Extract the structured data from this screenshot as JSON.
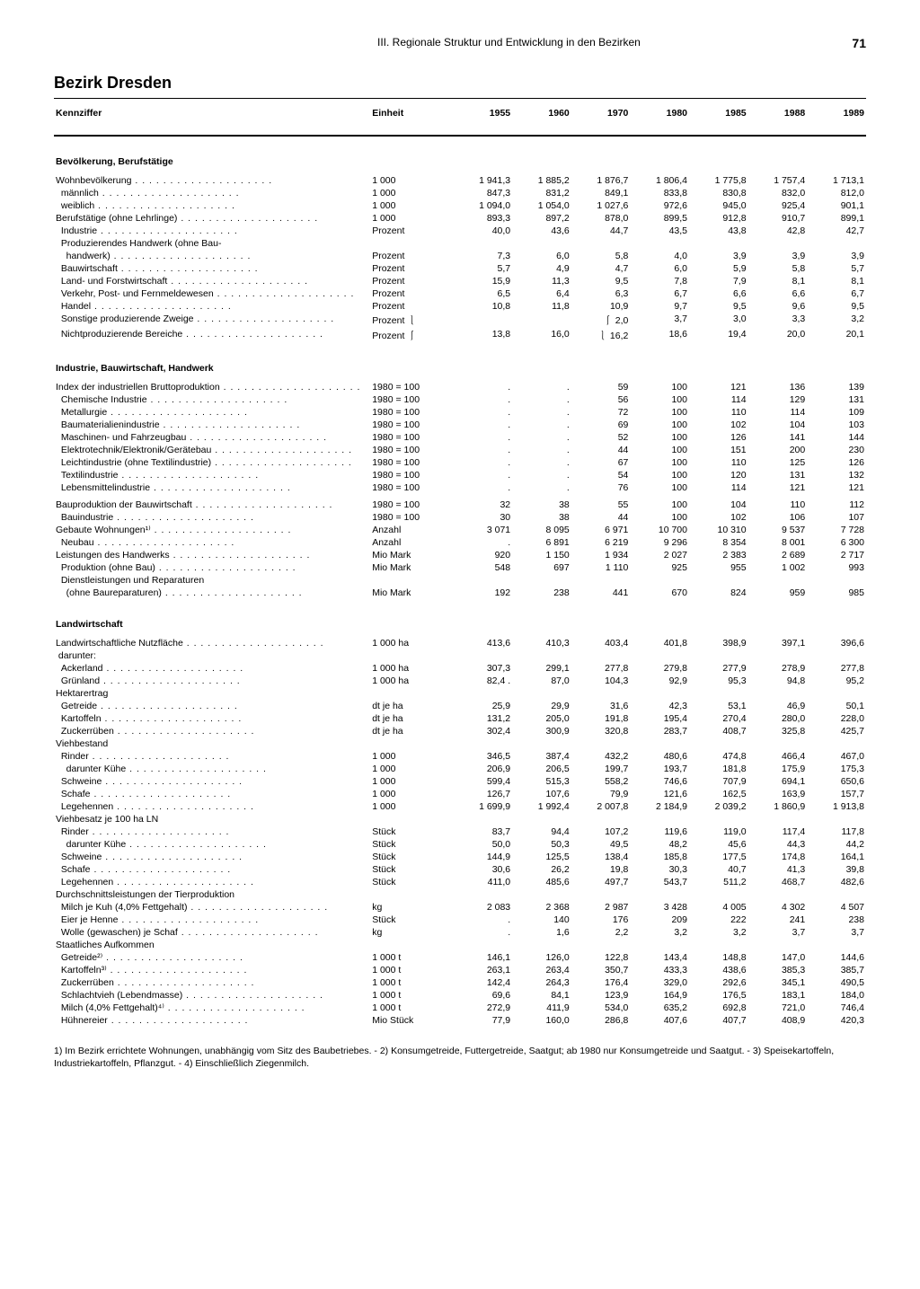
{
  "page": {
    "chapter": "III. Regionale Struktur und Entwicklung in den Bezirken",
    "number": "71",
    "title": "Bezirk Dresden"
  },
  "columns": [
    "Kennziffer",
    "Einheit",
    "1955",
    "1960",
    "1970",
    "1980",
    "1985",
    "1988",
    "1989"
  ],
  "sections": [
    {
      "title": "Bevölkerung, Berufstätige",
      "rows": [
        {
          "label": "Wohnbevölkerung",
          "unit": "1 000",
          "v": [
            "1 941,3",
            "1 885,2",
            "1 876,7",
            "1 806,4",
            "1 775,8",
            "1 757,4",
            "1 713,1"
          ],
          "dots": 1
        },
        {
          "label": "  männlich",
          "unit": "1 000",
          "v": [
            "847,3",
            "831,2",
            "849,1",
            "833,8",
            "830,8",
            "832,0",
            "812,0"
          ],
          "dots": 1
        },
        {
          "label": "  weiblich",
          "unit": "1 000",
          "v": [
            "1 094,0",
            "1 054,0",
            "1 027,6",
            "972,6",
            "945,0",
            "925,4",
            "901,1"
          ],
          "dots": 1
        },
        {
          "label": "Berufstätige (ohne Lehrlinge)",
          "unit": "1 000",
          "v": [
            "893,3",
            "897,2",
            "878,0",
            "899,5",
            "912,8",
            "910,7",
            "899,1"
          ],
          "dots": 1
        },
        {
          "label": "  Industrie",
          "unit": "Prozent",
          "v": [
            "40,0",
            "43,6",
            "44,7",
            "43,5",
            "43,8",
            "42,8",
            "42,7"
          ],
          "dots": 1
        },
        {
          "label": "  Produzierendes Handwerk (ohne Bau-",
          "unit": "",
          "v": [
            "",
            "",
            "",
            "",
            "",
            "",
            ""
          ]
        },
        {
          "label": "    handwerk)",
          "unit": "Prozent",
          "v": [
            "7,3",
            "6,0",
            "5,8",
            "4,0",
            "3,9",
            "3,9",
            "3,9"
          ],
          "dots": 1
        },
        {
          "label": "  Bauwirtschaft",
          "unit": "Prozent",
          "v": [
            "5,7",
            "4,9",
            "4,7",
            "6,0",
            "5,9",
            "5,8",
            "5,7"
          ],
          "dots": 1
        },
        {
          "label": "  Land- und Forstwirtschaft",
          "unit": "Prozent",
          "v": [
            "15,9",
            "11,3",
            "9,5",
            "7,8",
            "7,9",
            "8,1",
            "8,1"
          ],
          "dots": 1
        },
        {
          "label": "  Verkehr, Post- und Fernmeldewesen",
          "unit": "Prozent",
          "v": [
            "6,5",
            "6,4",
            "6,3",
            "6,7",
            "6,6",
            "6,6",
            "6,7"
          ],
          "dots": 1
        },
        {
          "label": "  Handel",
          "unit": "Prozent",
          "v": [
            "10,8",
            "11,8",
            "10,9",
            "9,7",
            "9,5",
            "9,6",
            "9,5"
          ],
          "dots": 1
        },
        {
          "label": "  Sonstige produzierende Zweige",
          "unit": "Prozent  ⎱",
          "v": [
            "",
            "",
            "⎰  2,0",
            "3,7",
            "3,0",
            "3,3",
            "3,2"
          ],
          "dots": 1
        },
        {
          "label": "  Nichtproduzierende Bereiche",
          "unit": "Prozent  ⎰",
          "v": [
            "13,8",
            "16,0",
            "⎱ 16,2",
            "18,6",
            "19,4",
            "20,0",
            "20,1"
          ],
          "dots": 1
        }
      ]
    },
    {
      "title": "Industrie, Bauwirtschaft, Handwerk",
      "rows": [
        {
          "label": "Index der industriellen Bruttoproduktion",
          "unit": "1980 = 100",
          "v": [
            ".",
            ".",
            "59",
            "100",
            "121",
            "136",
            "139"
          ],
          "dots": 1
        },
        {
          "label": "  Chemische Industrie",
          "unit": "1980 = 100",
          "v": [
            ".",
            ".",
            "56",
            "100",
            "114",
            "129",
            "131"
          ],
          "dots": 1
        },
        {
          "label": "  Metallurgie",
          "unit": "1980 = 100",
          "v": [
            ".",
            ".",
            "72",
            "100",
            "110",
            "114",
            "109"
          ],
          "dots": 1
        },
        {
          "label": "  Baumaterialienindustrie",
          "unit": "1980 = 100",
          "v": [
            ".",
            ".",
            "69",
            "100",
            "102",
            "104",
            "103"
          ],
          "dots": 1
        },
        {
          "label": "  Maschinen- und Fahrzeugbau",
          "unit": "1980 = 100",
          "v": [
            ".",
            ".",
            "52",
            "100",
            "126",
            "141",
            "144"
          ],
          "dots": 1
        },
        {
          "label": "  Elektrotechnik/Elektronik/Gerätebau",
          "unit": "1980 = 100",
          "v": [
            ".",
            ".",
            "44",
            "100",
            "151",
            "200",
            "230"
          ],
          "dots": 1
        },
        {
          "label": "  Leichtindustrie (ohne Textilindustrie)",
          "unit": "1980 = 100",
          "v": [
            ".",
            ".",
            "67",
            "100",
            "110",
            "125",
            "126"
          ],
          "dots": 1
        },
        {
          "label": "  Textilindustrie",
          "unit": "1980 = 100",
          "v": [
            ".",
            ".",
            "54",
            "100",
            "120",
            "131",
            "132"
          ],
          "dots": 1
        },
        {
          "label": "  Lebensmittelindustrie",
          "unit": "1980 = 100",
          "v": [
            ".",
            ".",
            "76",
            "100",
            "114",
            "121",
            "121"
          ],
          "dots": 1
        },
        {
          "label": "Bauproduktion der Bauwirtschaft",
          "unit": "1980 = 100",
          "v": [
            "32",
            "38",
            "55",
            "100",
            "104",
            "110",
            "112"
          ],
          "dots": 1,
          "pad": 1
        },
        {
          "label": "  Bauindustrie",
          "unit": "1980 = 100",
          "v": [
            "30",
            "38",
            "44",
            "100",
            "102",
            "106",
            "107"
          ],
          "dots": 1
        },
        {
          "label": "Gebaute Wohnungen¹⁾",
          "unit": "Anzahl",
          "v": [
            "3 071",
            "8 095",
            "6 971",
            "10 700",
            "10 310",
            "9 537",
            "7 728"
          ],
          "dots": 1
        },
        {
          "label": "  Neubau",
          "unit": "Anzahl",
          "v": [
            ".",
            "6 891",
            "6 219",
            "9 296",
            "8 354",
            "8 001",
            "6 300"
          ],
          "dots": 1
        },
        {
          "label": "Leistungen des Handwerks",
          "unit": "Mio Mark",
          "v": [
            "920",
            "1 150",
            "1 934",
            "2 027",
            "2 383",
            "2 689",
            "2 717"
          ],
          "dots": 1
        },
        {
          "label": "  Produktion (ohne Bau)",
          "unit": "Mio Mark",
          "v": [
            "548",
            "697",
            "1 110",
            "925",
            "955",
            "1 002",
            "993"
          ],
          "dots": 1
        },
        {
          "label": "  Dienstleistungen und Reparaturen",
          "unit": "",
          "v": [
            "",
            "",
            "",
            "",
            "",
            "",
            ""
          ]
        },
        {
          "label": "    (ohne Baureparaturen)",
          "unit": "Mio Mark",
          "v": [
            "192",
            "238",
            "441",
            "670",
            "824",
            "959",
            "985"
          ],
          "dots": 1
        }
      ]
    },
    {
      "title": "Landwirtschaft",
      "rows": [
        {
          "label": "Landwirtschaftliche Nutzfläche",
          "unit": "1 000 ha",
          "v": [
            "413,6",
            "410,3",
            "403,4",
            "401,8",
            "398,9",
            "397,1",
            "396,6"
          ],
          "dots": 1
        },
        {
          "label": " darunter:",
          "unit": "",
          "v": [
            "",
            "",
            "",
            "",
            "",
            "",
            ""
          ]
        },
        {
          "label": "  Ackerland",
          "unit": "1 000 ha",
          "v": [
            "307,3",
            "299,1",
            "277,8",
            "279,8",
            "277,9",
            "278,9",
            "277,8"
          ],
          "dots": 1
        },
        {
          "label": "  Grünland",
          "unit": "1 000 ha",
          "v": [
            "82,4 .",
            "87,0",
            "104,3",
            "92,9",
            "95,3",
            "94,8",
            "95,2"
          ],
          "dots": 1
        },
        {
          "label": "Hektarertrag",
          "unit": "",
          "v": [
            "",
            "",
            "",
            "",
            "",
            "",
            ""
          ]
        },
        {
          "label": "  Getreide",
          "unit": "dt je ha",
          "v": [
            "25,9",
            "29,9",
            "31,6",
            "42,3",
            "53,1",
            "46,9",
            "50,1"
          ],
          "dots": 1
        },
        {
          "label": "  Kartoffeln",
          "unit": "dt je ha",
          "v": [
            "131,2",
            "205,0",
            "191,8",
            "195,4",
            "270,4",
            "280,0",
            "228,0"
          ],
          "dots": 1
        },
        {
          "label": "  Zuckerrüben",
          "unit": "dt je ha",
          "v": [
            "302,4",
            "300,9",
            "320,8",
            "283,7",
            "408,7",
            "325,8",
            "425,7"
          ],
          "dots": 1
        },
        {
          "label": "Viehbestand",
          "unit": "",
          "v": [
            "",
            "",
            "",
            "",
            "",
            "",
            ""
          ]
        },
        {
          "label": "  Rinder",
          "unit": "1 000",
          "v": [
            "346,5",
            "387,4",
            "432,2",
            "480,6",
            "474,8",
            "466,4",
            "467,0"
          ],
          "dots": 1
        },
        {
          "label": "    darunter Kühe",
          "unit": "1 000",
          "v": [
            "206,9",
            "206,5",
            "199,7",
            "193,7",
            "181,8",
            "175,9",
            "175,3"
          ],
          "dots": 1
        },
        {
          "label": "  Schweine",
          "unit": "1 000",
          "v": [
            "599,4",
            "515,3",
            "558,2",
            "746,6",
            "707,9",
            "694,1",
            "650,6"
          ],
          "dots": 1
        },
        {
          "label": "  Schafe",
          "unit": "1 000",
          "v": [
            "126,7",
            "107,6",
            "79,9",
            "121,6",
            "162,5",
            "163,9",
            "157,7"
          ],
          "dots": 1
        },
        {
          "label": "  Legehennen",
          "unit": "1 000",
          "v": [
            "1 699,9",
            "1 992,4",
            "2 007,8",
            "2 184,9",
            "2 039,2",
            "1 860,9",
            "1 913,8"
          ],
          "dots": 1
        },
        {
          "label": "Viehbesatz je 100 ha LN",
          "unit": "",
          "v": [
            "",
            "",
            "",
            "",
            "",
            "",
            ""
          ]
        },
        {
          "label": "  Rinder",
          "unit": "Stück",
          "v": [
            "83,7",
            "94,4",
            "107,2",
            "119,6",
            "119,0",
            "117,4",
            "117,8"
          ],
          "dots": 1
        },
        {
          "label": "    darunter Kühe",
          "unit": "Stück",
          "v": [
            "50,0",
            "50,3",
            "49,5",
            "48,2",
            "45,6",
            "44,3",
            "44,2"
          ],
          "dots": 1
        },
        {
          "label": "  Schweine",
          "unit": "Stück",
          "v": [
            "144,9",
            "125,5",
            "138,4",
            "185,8",
            "177,5",
            "174,8",
            "164,1"
          ],
          "dots": 1
        },
        {
          "label": "  Schafe",
          "unit": "Stück",
          "v": [
            "30,6",
            "26,2",
            "19,8",
            "30,3",
            "40,7",
            "41,3",
            "39,8"
          ],
          "dots": 1
        },
        {
          "label": "  Legehennen",
          "unit": "Stück",
          "v": [
            "411,0",
            "485,6",
            "497,7",
            "543,7",
            "511,2",
            "468,7",
            "482,6"
          ],
          "dots": 1
        },
        {
          "label": "Durchschnittsleistungen der Tierproduktion",
          "unit": "",
          "v": [
            "",
            "",
            "",
            "",
            "",
            "",
            ""
          ]
        },
        {
          "label": "  Milch je Kuh (4,0% Fettgehalt)",
          "unit": "kg",
          "v": [
            "2 083",
            "2 368",
            "2 987",
            "3 428",
            "4 005",
            "4 302",
            "4 507"
          ],
          "dots": 1
        },
        {
          "label": "  Eier je Henne",
          "unit": "Stück",
          "v": [
            ".",
            "140",
            "176",
            "209",
            "222",
            "241",
            "238"
          ],
          "dots": 1
        },
        {
          "label": "  Wolle (gewaschen) je Schaf",
          "unit": "kg",
          "v": [
            ".",
            "1,6",
            "2,2",
            "3,2",
            "3,2",
            "3,7",
            "3,7"
          ],
          "dots": 1
        },
        {
          "label": "Staatliches Aufkommen",
          "unit": "",
          "v": [
            "",
            "",
            "",
            "",
            "",
            "",
            ""
          ]
        },
        {
          "label": "  Getreide²⁾",
          "unit": "1 000 t",
          "v": [
            "146,1",
            "126,0",
            "122,8",
            "143,4",
            "148,8",
            "147,0",
            "144,6"
          ],
          "dots": 1
        },
        {
          "label": "  Kartoffeln³⁾",
          "unit": "1 000 t",
          "v": [
            "263,1",
            "263,4",
            "350,7",
            "433,3",
            "438,6",
            "385,3",
            "385,7"
          ],
          "dots": 1
        },
        {
          "label": "  Zuckerrüben",
          "unit": "1 000 t",
          "v": [
            "142,4",
            "264,3",
            "176,4",
            "329,0",
            "292,6",
            "345,1",
            "490,5"
          ],
          "dots": 1
        },
        {
          "label": "  Schlachtvieh (Lebendmasse)",
          "unit": "1 000 t",
          "v": [
            "69,6",
            "84,1",
            "123,9",
            "164,9",
            "176,5",
            "183,1",
            "184,0"
          ],
          "dots": 1
        },
        {
          "label": "  Milch (4,0% Fettgehalt)⁴⁾",
          "unit": "1 000 t",
          "v": [
            "272,9",
            "411,9",
            "534,0",
            "635,2",
            "692,8",
            "721,0",
            "746,4"
          ],
          "dots": 1
        },
        {
          "label": "  Hühnereier",
          "unit": "Mio Stück",
          "v": [
            "77,9",
            "160,0",
            "286,8",
            "407,6",
            "407,7",
            "408,9",
            "420,3"
          ],
          "dots": 1
        }
      ]
    }
  ],
  "footnotes": "1) Im Bezirk errichtete Wohnungen, unabhängig vom Sitz des Baubetriebes. - 2) Konsumgetreide, Futtergetreide, Saatgut; ab 1980 nur Konsumgetreide und Saatgut. - 3) Speisekartoffeln, Industriekartoffeln, Pflanzgut. - 4) Einschließlich Ziegenmilch."
}
